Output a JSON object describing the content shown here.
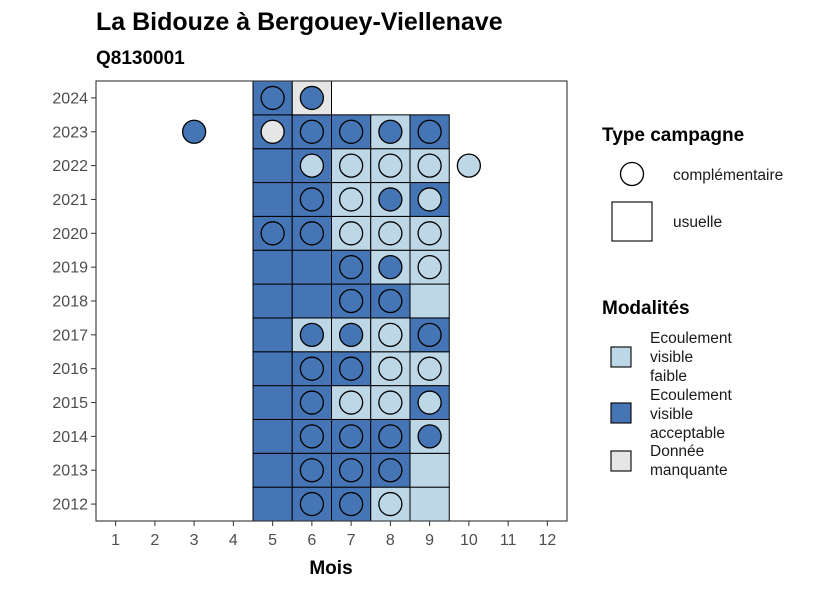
{
  "chart_data": {
    "type": "heatmap",
    "title": "La Bidouze à Bergouey-Viellenave",
    "subtitle": "Q8130001",
    "xlabel": "Mois",
    "ylabel": "",
    "x_ticks": [
      "1",
      "2",
      "3",
      "4",
      "5",
      "6",
      "7",
      "8",
      "9",
      "10",
      "11",
      "12"
    ],
    "y_ticks": [
      "2012",
      "2013",
      "2014",
      "2015",
      "2016",
      "2017",
      "2018",
      "2019",
      "2020",
      "2021",
      "2022",
      "2023",
      "2024"
    ],
    "xlim": [
      0.5,
      12.5
    ],
    "ylim": [
      2011.5,
      2024.5
    ],
    "colors": {
      "faible": "#bdd7e7",
      "acceptable": "#4575b4",
      "manquante": "#e6e6e6"
    },
    "usuelle": [
      {
        "year": 2012,
        "month": 5,
        "m": "acceptable"
      },
      {
        "year": 2012,
        "month": 6,
        "m": "acceptable"
      },
      {
        "year": 2012,
        "month": 7,
        "m": "acceptable"
      },
      {
        "year": 2012,
        "month": 8,
        "m": "faible"
      },
      {
        "year": 2012,
        "month": 9,
        "m": "faible"
      },
      {
        "year": 2013,
        "month": 5,
        "m": "acceptable"
      },
      {
        "year": 2013,
        "month": 6,
        "m": "acceptable"
      },
      {
        "year": 2013,
        "month": 7,
        "m": "acceptable"
      },
      {
        "year": 2013,
        "month": 8,
        "m": "acceptable"
      },
      {
        "year": 2013,
        "month": 9,
        "m": "faible"
      },
      {
        "year": 2014,
        "month": 5,
        "m": "acceptable"
      },
      {
        "year": 2014,
        "month": 6,
        "m": "acceptable"
      },
      {
        "year": 2014,
        "month": 7,
        "m": "acceptable"
      },
      {
        "year": 2014,
        "month": 8,
        "m": "acceptable"
      },
      {
        "year": 2014,
        "month": 9,
        "m": "faible"
      },
      {
        "year": 2015,
        "month": 5,
        "m": "acceptable"
      },
      {
        "year": 2015,
        "month": 6,
        "m": "acceptable"
      },
      {
        "year": 2015,
        "month": 7,
        "m": "faible"
      },
      {
        "year": 2015,
        "month": 8,
        "m": "faible"
      },
      {
        "year": 2015,
        "month": 9,
        "m": "acceptable"
      },
      {
        "year": 2016,
        "month": 5,
        "m": "acceptable"
      },
      {
        "year": 2016,
        "month": 6,
        "m": "acceptable"
      },
      {
        "year": 2016,
        "month": 7,
        "m": "acceptable"
      },
      {
        "year": 2016,
        "month": 8,
        "m": "faible"
      },
      {
        "year": 2016,
        "month": 9,
        "m": "faible"
      },
      {
        "year": 2017,
        "month": 5,
        "m": "acceptable"
      },
      {
        "year": 2017,
        "month": 6,
        "m": "faible"
      },
      {
        "year": 2017,
        "month": 7,
        "m": "faible"
      },
      {
        "year": 2017,
        "month": 8,
        "m": "faible"
      },
      {
        "year": 2017,
        "month": 9,
        "m": "acceptable"
      },
      {
        "year": 2018,
        "month": 5,
        "m": "acceptable"
      },
      {
        "year": 2018,
        "month": 6,
        "m": "acceptable"
      },
      {
        "year": 2018,
        "month": 7,
        "m": "acceptable"
      },
      {
        "year": 2018,
        "month": 8,
        "m": "acceptable"
      },
      {
        "year": 2018,
        "month": 9,
        "m": "faible"
      },
      {
        "year": 2019,
        "month": 5,
        "m": "acceptable"
      },
      {
        "year": 2019,
        "month": 6,
        "m": "acceptable"
      },
      {
        "year": 2019,
        "month": 7,
        "m": "acceptable"
      },
      {
        "year": 2019,
        "month": 8,
        "m": "faible"
      },
      {
        "year": 2019,
        "month": 9,
        "m": "faible"
      },
      {
        "year": 2020,
        "month": 5,
        "m": "acceptable"
      },
      {
        "year": 2020,
        "month": 6,
        "m": "acceptable"
      },
      {
        "year": 2020,
        "month": 7,
        "m": "faible"
      },
      {
        "year": 2020,
        "month": 8,
        "m": "faible"
      },
      {
        "year": 2020,
        "month": 9,
        "m": "faible"
      },
      {
        "year": 2021,
        "month": 5,
        "m": "acceptable"
      },
      {
        "year": 2021,
        "month": 6,
        "m": "acceptable"
      },
      {
        "year": 2021,
        "month": 7,
        "m": "faible"
      },
      {
        "year": 2021,
        "month": 8,
        "m": "faible"
      },
      {
        "year": 2021,
        "month": 9,
        "m": "acceptable"
      },
      {
        "year": 2022,
        "month": 5,
        "m": "acceptable"
      },
      {
        "year": 2022,
        "month": 6,
        "m": "acceptable"
      },
      {
        "year": 2022,
        "month": 7,
        "m": "faible"
      },
      {
        "year": 2022,
        "month": 8,
        "m": "faible"
      },
      {
        "year": 2022,
        "month": 9,
        "m": "faible"
      },
      {
        "year": 2023,
        "month": 5,
        "m": "acceptable"
      },
      {
        "year": 2023,
        "month": 6,
        "m": "acceptable"
      },
      {
        "year": 2023,
        "month": 7,
        "m": "acceptable"
      },
      {
        "year": 2023,
        "month": 8,
        "m": "faible"
      },
      {
        "year": 2023,
        "month": 9,
        "m": "acceptable"
      },
      {
        "year": 2024,
        "month": 5,
        "m": "acceptable"
      },
      {
        "year": 2024,
        "month": 6,
        "m": "manquante"
      }
    ],
    "complementaire": [
      {
        "year": 2012,
        "month": 6,
        "m": "acceptable"
      },
      {
        "year": 2012,
        "month": 7,
        "m": "acceptable"
      },
      {
        "year": 2012,
        "month": 8,
        "m": "faible"
      },
      {
        "year": 2013,
        "month": 6,
        "m": "acceptable"
      },
      {
        "year": 2013,
        "month": 7,
        "m": "acceptable"
      },
      {
        "year": 2013,
        "month": 8,
        "m": "acceptable"
      },
      {
        "year": 2014,
        "month": 6,
        "m": "acceptable"
      },
      {
        "year": 2014,
        "month": 7,
        "m": "acceptable"
      },
      {
        "year": 2014,
        "month": 8,
        "m": "acceptable"
      },
      {
        "year": 2014,
        "month": 9,
        "m": "acceptable"
      },
      {
        "year": 2015,
        "month": 6,
        "m": "acceptable"
      },
      {
        "year": 2015,
        "month": 7,
        "m": "faible"
      },
      {
        "year": 2015,
        "month": 8,
        "m": "faible"
      },
      {
        "year": 2015,
        "month": 9,
        "m": "faible"
      },
      {
        "year": 2016,
        "month": 6,
        "m": "acceptable"
      },
      {
        "year": 2016,
        "month": 7,
        "m": "acceptable"
      },
      {
        "year": 2016,
        "month": 8,
        "m": "faible"
      },
      {
        "year": 2016,
        "month": 9,
        "m": "faible"
      },
      {
        "year": 2017,
        "month": 6,
        "m": "acceptable"
      },
      {
        "year": 2017,
        "month": 7,
        "m": "acceptable"
      },
      {
        "year": 2017,
        "month": 8,
        "m": "faible"
      },
      {
        "year": 2017,
        "month": 9,
        "m": "acceptable"
      },
      {
        "year": 2018,
        "month": 7,
        "m": "acceptable"
      },
      {
        "year": 2018,
        "month": 8,
        "m": "acceptable"
      },
      {
        "year": 2019,
        "month": 7,
        "m": "acceptable"
      },
      {
        "year": 2019,
        "month": 8,
        "m": "acceptable"
      },
      {
        "year": 2019,
        "month": 9,
        "m": "faible"
      },
      {
        "year": 2020,
        "month": 5,
        "m": "acceptable"
      },
      {
        "year": 2020,
        "month": 6,
        "m": "acceptable"
      },
      {
        "year": 2020,
        "month": 7,
        "m": "faible"
      },
      {
        "year": 2020,
        "month": 8,
        "m": "faible"
      },
      {
        "year": 2020,
        "month": 9,
        "m": "faible"
      },
      {
        "year": 2021,
        "month": 6,
        "m": "acceptable"
      },
      {
        "year": 2021,
        "month": 7,
        "m": "faible"
      },
      {
        "year": 2021,
        "month": 8,
        "m": "acceptable"
      },
      {
        "year": 2021,
        "month": 9,
        "m": "faible"
      },
      {
        "year": 2022,
        "month": 6,
        "m": "faible"
      },
      {
        "year": 2022,
        "month": 7,
        "m": "faible"
      },
      {
        "year": 2022,
        "month": 8,
        "m": "faible"
      },
      {
        "year": 2022,
        "month": 9,
        "m": "faible"
      },
      {
        "year": 2022,
        "month": 10,
        "m": "faible"
      },
      {
        "year": 2023,
        "month": 3,
        "m": "acceptable"
      },
      {
        "year": 2023,
        "month": 5,
        "m": "manquante"
      },
      {
        "year": 2023,
        "month": 6,
        "m": "acceptable"
      },
      {
        "year": 2023,
        "month": 7,
        "m": "acceptable"
      },
      {
        "year": 2023,
        "month": 8,
        "m": "acceptable"
      },
      {
        "year": 2023,
        "month": 9,
        "m": "acceptable"
      },
      {
        "year": 2024,
        "month": 5,
        "m": "acceptable"
      },
      {
        "year": 2024,
        "month": 6,
        "m": "acceptable"
      }
    ],
    "legend": {
      "type_title": "Type campagne",
      "type_items": [
        {
          "label": "complémentaire",
          "shape": "circle"
        },
        {
          "label": "usuelle",
          "shape": "square"
        }
      ],
      "mod_title": "Modalités",
      "mod_items": [
        {
          "lines": [
            "Ecoulement",
            "visible",
            "faible"
          ],
          "key": "faible"
        },
        {
          "lines": [
            "Ecoulement",
            "visible",
            "acceptable"
          ],
          "key": "acceptable"
        },
        {
          "lines": [
            "Donnée",
            "manquante"
          ],
          "key": "manquante"
        }
      ]
    }
  }
}
